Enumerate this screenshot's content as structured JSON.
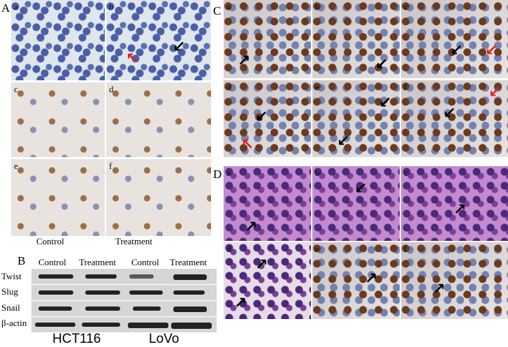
{
  "panel_A": {
    "label": "A",
    "subpanels": [
      "a",
      "b",
      "c",
      "d",
      "e",
      "f"
    ],
    "captions": {
      "control": "Control",
      "treatment": "Treatment"
    }
  },
  "panel_B": {
    "label": "B",
    "column_headers": [
      "Control",
      "Treatment",
      "Control",
      "Treatment"
    ],
    "row_labels": [
      "Twist",
      "Slug",
      "Snail",
      "β-actin"
    ],
    "cell_lines": [
      "HCT116",
      "LoVo"
    ]
  },
  "panel_C": {
    "label": "C",
    "subpanels": [
      "a",
      "b",
      "c",
      "d",
      "e",
      "f"
    ]
  },
  "panel_D": {
    "label": "D",
    "subpanels": [
      "a",
      "b",
      "c",
      "d",
      "e",
      "f"
    ]
  }
}
